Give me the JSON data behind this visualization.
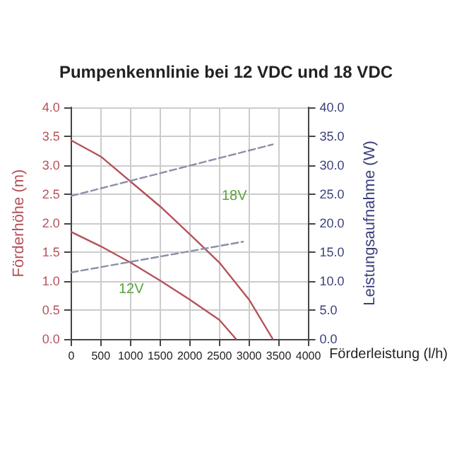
{
  "chart_data": {
    "type": "line",
    "title": "Pumpenkennlinie bei 12 VDC und 18 VDC",
    "xlabel": "Förderleistung (l/h)",
    "ylabel": "Förderhöhe (m)",
    "y2label": "Leistungsaufnahme (W)",
    "xlim": [
      0,
      4000
    ],
    "xticks": [
      0,
      500,
      1000,
      1500,
      2000,
      2500,
      3000,
      3500,
      4000
    ],
    "ylim": [
      0,
      4
    ],
    "yticks": [
      {
        "value": 0,
        "label": "0.0"
      },
      {
        "value": 0.5,
        "label": "0.5"
      },
      {
        "value": 1,
        "label": "1.0"
      },
      {
        "value": 1.5,
        "label": "1.5"
      },
      {
        "value": 2,
        "label": "2.0"
      },
      {
        "value": 2.5,
        "label": "2.5"
      },
      {
        "value": 3,
        "label": "3.0"
      },
      {
        "value": 3.5,
        "label": "3.5"
      },
      {
        "value": 4,
        "label": "4.0"
      }
    ],
    "y2lim": [
      0,
      40
    ],
    "y2ticks": [
      {
        "value": 0,
        "label": "0.0"
      },
      {
        "value": 5,
        "label": "5.0"
      },
      {
        "value": 10,
        "label": "10.0"
      },
      {
        "value": 15,
        "label": "15.0"
      },
      {
        "value": 20,
        "label": "20.0"
      },
      {
        "value": 25,
        "label": "25.0"
      },
      {
        "value": 30,
        "label": "30.0"
      },
      {
        "value": 35,
        "label": "35.0"
      },
      {
        "value": 40,
        "label": "40.0"
      }
    ],
    "grid": true,
    "marker": "none",
    "series": [
      {
        "color": "#b5525a",
        "line_style": "solid",
        "x": [
          0,
          500,
          1000,
          1500,
          2000,
          2500,
          3000,
          3400
        ],
        "values": [
          3.43,
          3.15,
          2.72,
          2.29,
          1.81,
          1.32,
          0.68,
          0
        ]
      },
      {
        "color": "#b5525a",
        "line_style": "solid",
        "x": [
          0,
          500,
          1000,
          1500,
          2000,
          2500,
          2780
        ],
        "values": [
          1.85,
          1.6,
          1.32,
          1.01,
          0.68,
          0.33,
          0
        ]
      },
      {
        "color": "#8a8fa8",
        "line_style": "dashed",
        "axis": "y2",
        "x": [
          0,
          3400
        ],
        "values": [
          24.7,
          33.6
        ]
      },
      {
        "color": "#8a8fa8",
        "line_style": "dashed",
        "axis": "y2",
        "x": [
          0,
          2900
        ],
        "values": [
          11.5,
          16.8
        ]
      }
    ],
    "annotations": [
      "18V",
      "12V"
    ]
  }
}
